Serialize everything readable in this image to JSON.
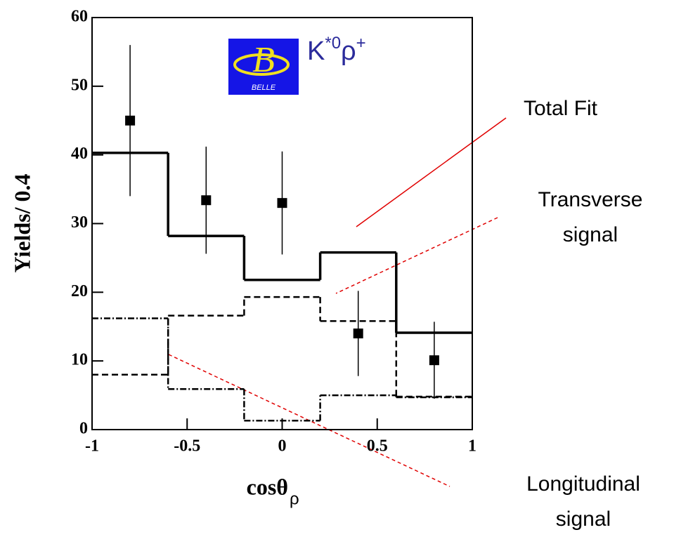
{
  "chart_data": {
    "type": "histogram",
    "bins": [
      -1,
      -0.6,
      -0.2,
      0.2,
      0.6,
      1
    ],
    "series": [
      {
        "name": "Total Fit",
        "style": "solid",
        "color": "#000000",
        "values": [
          40.3,
          28.2,
          21.8,
          25.8,
          14.1
        ]
      },
      {
        "name": "Transverse signal",
        "style": "dashed",
        "color": "#000000",
        "values": [
          8,
          16.6,
          19.3,
          15.8,
          4.8
        ]
      },
      {
        "name": "Longitudinal signal",
        "style": "dashdot",
        "color": "#000000",
        "values": [
          16.2,
          5.9,
          1.3,
          5,
          4.7
        ]
      }
    ],
    "points": {
      "x": [
        -0.8,
        -0.4,
        0,
        0.4,
        0.8
      ],
      "values": [
        45,
        33.4,
        33,
        14,
        10.1
      ],
      "errors": [
        11,
        7.8,
        7.5,
        6.2,
        5.6
      ],
      "color": "#000000"
    },
    "xlim": [
      -1,
      1
    ],
    "xticks": [
      -1,
      -0.5,
      0,
      0.5,
      1
    ],
    "ylim": [
      0,
      60
    ],
    "yticks": [
      0,
      10,
      20,
      30,
      40,
      50,
      60
    ],
    "ylabel": "Yields/ 0.4",
    "xlabel": "cosθ",
    "xlabel_subscript": "ρ",
    "logo_text": "BELLE",
    "channel": {
      "base1": "K",
      "sup1": "*0",
      "base2": "ρ",
      "sup2": "+",
      "color": "#2b2b9b"
    }
  }
}
